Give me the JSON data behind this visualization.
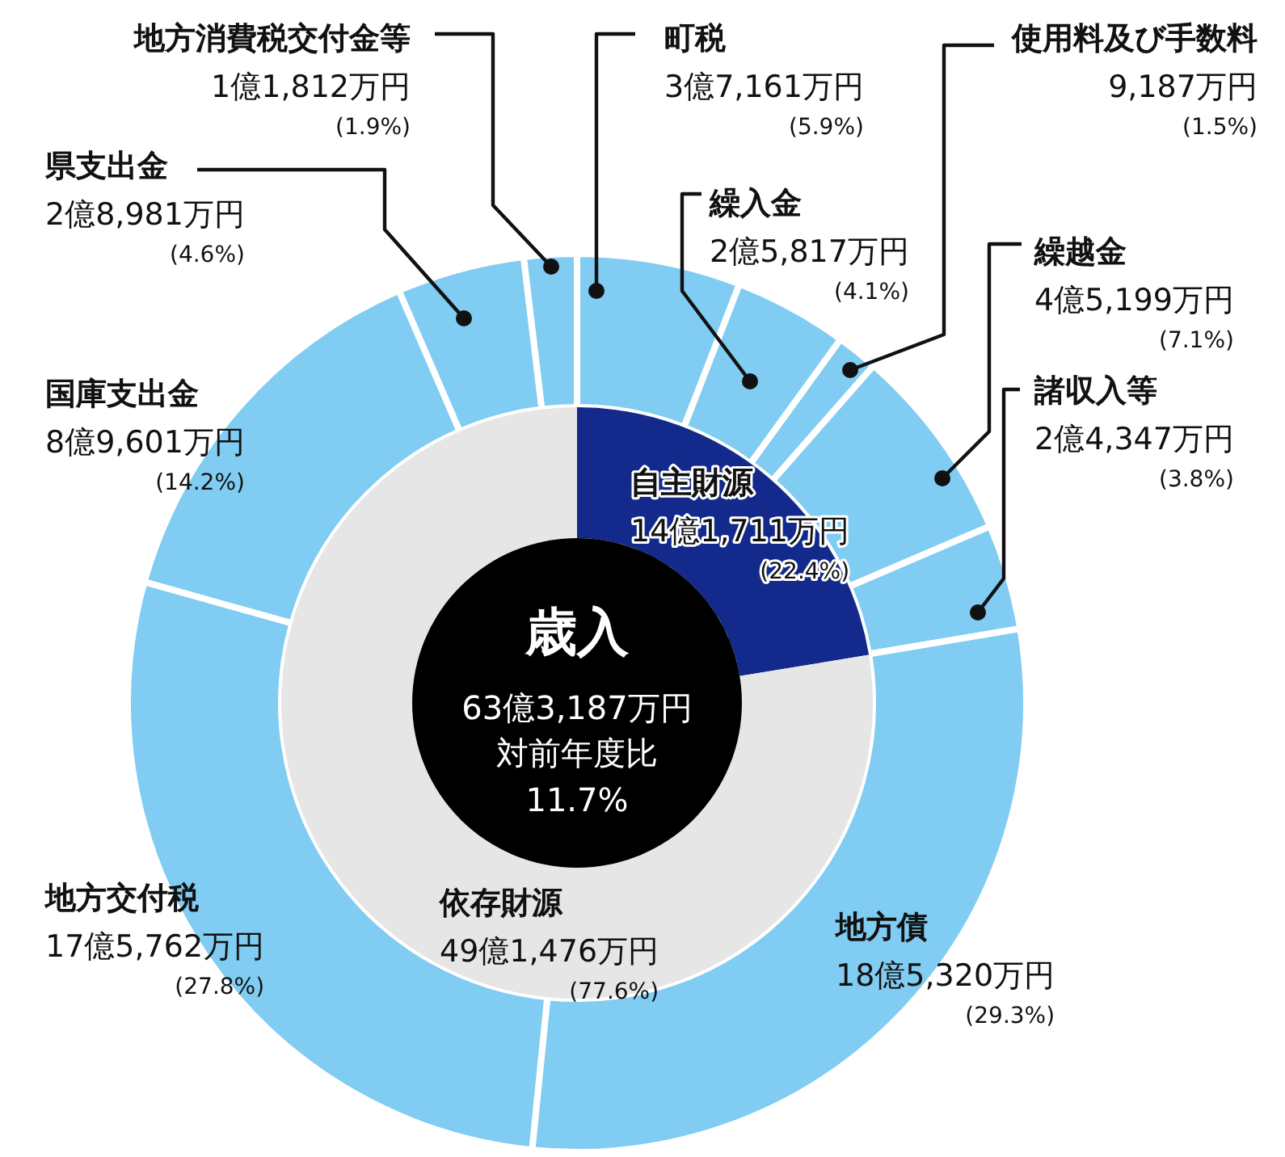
{
  "chart_data": [
    {
      "type": "donut",
      "categories": [
        "町税",
        "繰入金",
        "使用料及び手数料",
        "繰越金",
        "諸収入等",
        "地方債",
        "地方交付税",
        "国庫支出金",
        "県支出金",
        "地方消費税交付金等"
      ],
      "values": [
        5.9,
        4.1,
        1.5,
        7.1,
        3.8,
        29.3,
        27.8,
        14.2,
        4.6,
        1.9
      ],
      "colors": [
        "#80ccf2",
        "#80ccf2",
        "#80ccf2",
        "#80ccf2",
        "#80ccf2",
        "#80ccf2",
        "#80ccf2",
        "#80ccf2",
        "#80ccf2",
        "#80ccf2"
      ],
      "value_labels": [
        "3億7,161万円\n(5.9%)",
        "2億5,817万円\n(4.1%)",
        "9,187万円\n(1.5%)",
        "4億5,199万円\n(7.1%)",
        "2億4,347万円\n(3.8%)",
        "18億5,320万円\n(29.3%)",
        "17億5,762万円\n(27.8%)",
        "8億9,601万円\n(14.2%)",
        "2億8,981万円\n(4.6%)",
        "1億1,812万円\n(1.9%)"
      ]
    },
    {
      "type": "donut",
      "title": "歳入",
      "subtitle": "63億3,187万円",
      "annotations": [
        "対前年度比",
        "11.7%"
      ],
      "categories": [
        "自主財源",
        "依存財源"
      ],
      "values": [
        22.4,
        77.6
      ],
      "colors": [
        "#132a8c",
        "#e6e6e6"
      ],
      "value_labels": [
        "14億1,711万円\n(22.4%)",
        "49億1,476万円\n(77.6%)"
      ]
    }
  ]
}
